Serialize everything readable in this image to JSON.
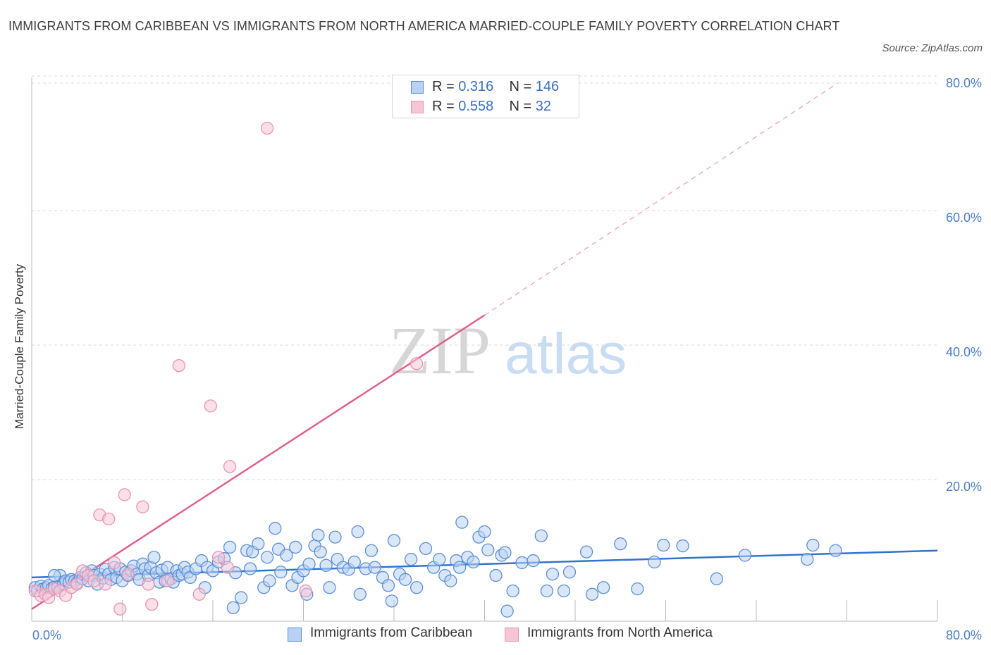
{
  "title": "IMMIGRANTS FROM CARIBBEAN VS IMMIGRANTS FROM NORTH AMERICA MARRIED-COUPLE FAMILY POVERTY CORRELATION CHART",
  "source": "Source: ZipAtlas.com",
  "watermark": {
    "zip": "ZIP",
    "atlas": "atlas"
  },
  "colors": {
    "blue": "#5b8fd8",
    "blue_fill": "#b9d2f3",
    "blue_line": "#2f74d0",
    "pink": "#e993b3",
    "pink_fill": "#f7c6d6",
    "pink_line": "#e0608c",
    "tick_text": "#4a7cc9"
  },
  "legend": {
    "rows": [
      {
        "r_label": "R = ",
        "r_value": "0.316",
        "n_label": "N = ",
        "n_value": "146"
      },
      {
        "r_label": "R = ",
        "r_value": "0.558",
        "n_label": "N = ",
        "n_value": "32"
      }
    ]
  },
  "bottom_legend": [
    "Immigrants from Caribbean",
    "Immigrants from North America"
  ],
  "chart_data": {
    "type": "scatter",
    "title": "IMMIGRANTS FROM CARIBBEAN VS IMMIGRANTS FROM NORTH AMERICA MARRIED-COUPLE FAMILY POVERTY CORRELATION CHART",
    "xlabel": "",
    "ylabel": "Married-Couple Family Poverty",
    "xlim": [
      0,
      80
    ],
    "ylim": [
      0,
      80
    ],
    "x_tick_labels": [
      "0.0%",
      "80.0%"
    ],
    "y_tick_labels": [
      "20.0%",
      "40.0%",
      "60.0%",
      "80.0%"
    ],
    "y_ticks": [
      20,
      40,
      60,
      80
    ],
    "grid": true,
    "legend_position": "top-center",
    "series": [
      {
        "name": "Immigrants from Caribbean",
        "R": 0.316,
        "N": 146,
        "trend": {
          "x": [
            0,
            80
          ],
          "y": [
            6.5,
            10.5
          ],
          "dashed_extension": false
        },
        "points": [
          [
            0.3,
            5.0
          ],
          [
            0.5,
            4.5
          ],
          [
            0.8,
            5.2
          ],
          [
            1.0,
            4.8
          ],
          [
            1.3,
            5.0
          ],
          [
            1.5,
            5.3
          ],
          [
            1.8,
            4.9
          ],
          [
            2.0,
            5.1
          ],
          [
            2.3,
            5.0
          ],
          [
            2.5,
            6.8
          ],
          [
            2.8,
            5.5
          ],
          [
            3.0,
            6.0
          ],
          [
            3.3,
            5.8
          ],
          [
            3.5,
            6.2
          ],
          [
            3.8,
            6.0
          ],
          [
            4.0,
            5.7
          ],
          [
            4.3,
            6.5
          ],
          [
            4.5,
            6.3
          ],
          [
            4.8,
            7.2
          ],
          [
            5.0,
            6.0
          ],
          [
            5.3,
            7.5
          ],
          [
            5.5,
            6.8
          ],
          [
            5.8,
            5.5
          ],
          [
            6.0,
            7.0
          ],
          [
            6.3,
            6.4
          ],
          [
            6.5,
            7.7
          ],
          [
            6.8,
            7.0
          ],
          [
            7.0,
            6.2
          ],
          [
            7.3,
            8.0
          ],
          [
            7.5,
            6.5
          ],
          [
            7.8,
            7.8
          ],
          [
            8.0,
            6.0
          ],
          [
            8.3,
            7.3
          ],
          [
            8.5,
            6.8
          ],
          [
            8.8,
            7.5
          ],
          [
            9.0,
            8.2
          ],
          [
            9.3,
            7.0
          ],
          [
            9.5,
            6.2
          ],
          [
            9.8,
            8.5
          ],
          [
            10.0,
            7.8
          ],
          [
            10.3,
            6.8
          ],
          [
            10.5,
            8.0
          ],
          [
            10.8,
            9.5
          ],
          [
            11.0,
            7.2
          ],
          [
            11.3,
            5.8
          ],
          [
            11.5,
            7.6
          ],
          [
            11.8,
            6.0
          ],
          [
            12.0,
            8.0
          ],
          [
            12.3,
            6.3
          ],
          [
            12.5,
            5.8
          ],
          [
            12.8,
            7.5
          ],
          [
            13.0,
            6.8
          ],
          [
            13.3,
            7.0
          ],
          [
            13.5,
            8.0
          ],
          [
            13.8,
            7.3
          ],
          [
            14.0,
            6.5
          ],
          [
            14.5,
            7.8
          ],
          [
            15.0,
            9.0
          ],
          [
            15.3,
            5.0
          ],
          [
            15.5,
            8.0
          ],
          [
            16.0,
            7.5
          ],
          [
            16.5,
            8.8
          ],
          [
            17.0,
            9.3
          ],
          [
            17.5,
            11.0
          ],
          [
            17.8,
            2.0
          ],
          [
            18.0,
            7.2
          ],
          [
            18.5,
            3.5
          ],
          [
            19.0,
            10.5
          ],
          [
            19.3,
            7.8
          ],
          [
            19.5,
            10.3
          ],
          [
            20.0,
            11.5
          ],
          [
            20.5,
            5.0
          ],
          [
            20.8,
            9.5
          ],
          [
            21.0,
            6.0
          ],
          [
            21.5,
            13.8
          ],
          [
            21.8,
            10.7
          ],
          [
            22.0,
            7.3
          ],
          [
            22.5,
            9.8
          ],
          [
            23.0,
            5.3
          ],
          [
            23.3,
            11.0
          ],
          [
            23.5,
            6.5
          ],
          [
            24.0,
            7.5
          ],
          [
            24.3,
            4.0
          ],
          [
            24.5,
            8.5
          ],
          [
            25.0,
            11.2
          ],
          [
            25.3,
            12.8
          ],
          [
            25.5,
            10.3
          ],
          [
            26.0,
            8.3
          ],
          [
            26.3,
            5.0
          ],
          [
            26.8,
            12.5
          ],
          [
            27.0,
            9.2
          ],
          [
            27.5,
            8.0
          ],
          [
            28.0,
            7.7
          ],
          [
            28.5,
            8.8
          ],
          [
            28.8,
            13.3
          ],
          [
            29.0,
            4.0
          ],
          [
            29.5,
            7.8
          ],
          [
            30.0,
            10.5
          ],
          [
            30.3,
            8.0
          ],
          [
            31.0,
            6.5
          ],
          [
            31.5,
            5.3
          ],
          [
            31.8,
            3.0
          ],
          [
            32.0,
            12.0
          ],
          [
            32.5,
            7.0
          ],
          [
            33.0,
            6.2
          ],
          [
            33.5,
            9.2
          ],
          [
            34.0,
            5.0
          ],
          [
            34.8,
            10.8
          ],
          [
            35.5,
            8.0
          ],
          [
            36.0,
            9.2
          ],
          [
            36.5,
            6.8
          ],
          [
            37.0,
            6.0
          ],
          [
            37.5,
            9.0
          ],
          [
            37.8,
            8.0
          ],
          [
            38.0,
            14.7
          ],
          [
            38.5,
            9.5
          ],
          [
            39.0,
            8.8
          ],
          [
            39.5,
            12.5
          ],
          [
            40.0,
            13.3
          ],
          [
            40.3,
            10.6
          ],
          [
            41.0,
            6.8
          ],
          [
            41.5,
            9.8
          ],
          [
            41.8,
            10.2
          ],
          [
            42.0,
            1.5
          ],
          [
            42.5,
            4.5
          ],
          [
            43.3,
            8.7
          ],
          [
            44.3,
            9.0
          ],
          [
            45.0,
            12.7
          ],
          [
            45.5,
            4.5
          ],
          [
            46.0,
            7.0
          ],
          [
            47.0,
            4.5
          ],
          [
            47.5,
            7.3
          ],
          [
            49.0,
            10.3
          ],
          [
            49.5,
            4.0
          ],
          [
            50.5,
            5.0
          ],
          [
            52.0,
            11.5
          ],
          [
            53.5,
            4.8
          ],
          [
            55.0,
            8.8
          ],
          [
            55.8,
            11.3
          ],
          [
            57.5,
            11.2
          ],
          [
            60.5,
            6.3
          ],
          [
            63.0,
            9.8
          ],
          [
            68.5,
            9.2
          ],
          [
            69.0,
            11.3
          ],
          [
            71.0,
            10.5
          ],
          [
            2.0,
            6.8
          ]
        ]
      },
      {
        "name": "Immigrants from North America",
        "R": 0.558,
        "N": 32,
        "trend": {
          "x": [
            0,
            40
          ],
          "y": [
            1.8,
            45.5
          ],
          "dashed_extension_to": [
            71.2,
            80
          ]
        },
        "points": [
          [
            0.3,
            4.5
          ],
          [
            0.8,
            3.8
          ],
          [
            1.2,
            4.0
          ],
          [
            1.5,
            3.5
          ],
          [
            2.0,
            4.8
          ],
          [
            2.5,
            4.5
          ],
          [
            3.0,
            3.8
          ],
          [
            3.5,
            5.0
          ],
          [
            4.0,
            5.5
          ],
          [
            4.5,
            7.5
          ],
          [
            5.0,
            6.8
          ],
          [
            5.5,
            6.0
          ],
          [
            6.0,
            15.8
          ],
          [
            6.5,
            5.5
          ],
          [
            6.8,
            15.2
          ],
          [
            7.3,
            8.7
          ],
          [
            7.8,
            1.8
          ],
          [
            8.2,
            18.8
          ],
          [
            8.5,
            7.0
          ],
          [
            9.8,
            17.0
          ],
          [
            10.3,
            5.5
          ],
          [
            10.6,
            2.5
          ],
          [
            12.0,
            6.0
          ],
          [
            13.0,
            38.0
          ],
          [
            14.8,
            4.0
          ],
          [
            15.8,
            32.0
          ],
          [
            16.5,
            9.5
          ],
          [
            17.3,
            8.0
          ],
          [
            17.5,
            23.0
          ],
          [
            20.8,
            73.3
          ],
          [
            24.2,
            4.5
          ],
          [
            34.0,
            38.3
          ]
        ]
      }
    ]
  }
}
